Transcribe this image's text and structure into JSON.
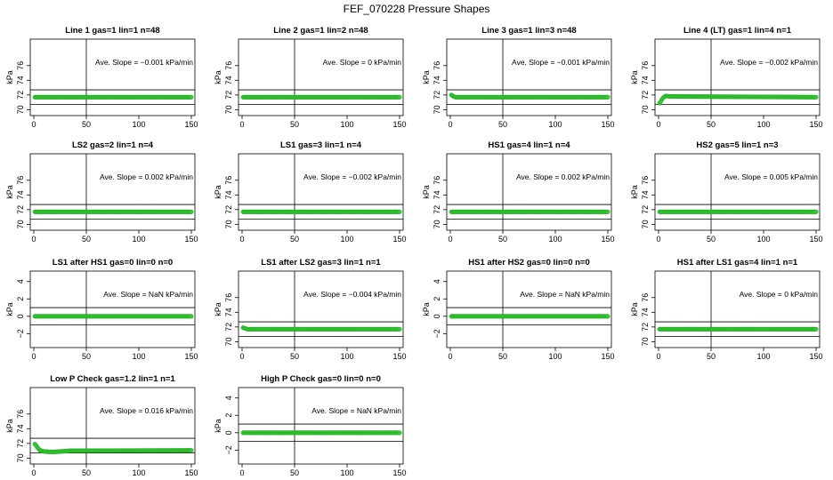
{
  "figure": {
    "title": "FEF_070228  Pressure Shapes",
    "line_color": "#000000",
    "point_color": "#33cc33",
    "point_edge": "#22a822"
  },
  "chart_data": [
    {
      "type": "scatter",
      "title": "Line 1 gas=1 lin=1 n=48",
      "ylabel": "kPa",
      "annotation": "Ave. Slope = −0.001  kPa/min",
      "xlim": [
        0,
        150
      ],
      "ylim": [
        69.2,
        79.6
      ],
      "xticks": [
        0,
        50,
        100,
        150
      ],
      "yticks": [
        70,
        72,
        74,
        76
      ],
      "hlines": [
        70.7,
        72.7
      ],
      "vline": 50,
      "x": [
        1,
        150
      ],
      "y": [
        71.7,
        71.7
      ],
      "shape": "flat"
    },
    {
      "type": "scatter",
      "title": "Line 2 gas=1 lin=2 n=48",
      "ylabel": "kPa",
      "annotation": "Ave. Slope =  0  kPa/min",
      "xlim": [
        0,
        150
      ],
      "ylim": [
        69.2,
        79.6
      ],
      "xticks": [
        0,
        50,
        100,
        150
      ],
      "yticks": [
        70,
        72,
        74,
        76
      ],
      "hlines": [
        70.7,
        72.7
      ],
      "vline": 50,
      "x": [
        1,
        150
      ],
      "y": [
        71.7,
        71.7
      ],
      "shape": "flat"
    },
    {
      "type": "scatter",
      "title": "Line 3 gas=1 lin=3 n=48",
      "ylabel": "kPa",
      "annotation": "Ave. Slope = −0.001  kPa/min",
      "xlim": [
        0,
        150
      ],
      "ylim": [
        69.2,
        79.6
      ],
      "xticks": [
        0,
        50,
        100,
        150
      ],
      "yticks": [
        70,
        72,
        74,
        76
      ],
      "hlines": [
        70.7,
        72.7
      ],
      "vline": 50,
      "x": [
        1,
        2,
        3,
        4,
        5,
        6,
        150
      ],
      "y": [
        72.0,
        71.9,
        71.8,
        71.75,
        71.7,
        71.7,
        71.7
      ],
      "shape": "curve"
    },
    {
      "type": "scatter",
      "title": "Line 4 (LT) gas=1 lin=4 n=1",
      "ylabel": "kPa",
      "annotation": "Ave. Slope = −0.002  kPa/min",
      "xlim": [
        0,
        150
      ],
      "ylim": [
        69.2,
        79.6
      ],
      "xticks": [
        0,
        50,
        100,
        150
      ],
      "yticks": [
        70,
        72,
        74,
        76
      ],
      "hlines": [
        70.7,
        72.7
      ],
      "vline": 50,
      "x": [
        1,
        2,
        3,
        4,
        5,
        6,
        7,
        8,
        10,
        150
      ],
      "y": [
        70.9,
        71.1,
        71.35,
        71.55,
        71.7,
        71.8,
        71.85,
        71.85,
        71.8,
        71.7
      ],
      "shape": "curve"
    },
    {
      "type": "scatter",
      "title": "LS2 gas=2 lin=1 n=4",
      "ylabel": "kPa",
      "annotation": "Ave. Slope =  0.002  kPa/min",
      "xlim": [
        0,
        150
      ],
      "ylim": [
        69.2,
        79.6
      ],
      "xticks": [
        0,
        50,
        100,
        150
      ],
      "yticks": [
        70,
        72,
        74,
        76
      ],
      "hlines": [
        70.7,
        72.7
      ],
      "vline": 50,
      "x": [
        1,
        150
      ],
      "y": [
        71.7,
        71.7
      ],
      "shape": "flat"
    },
    {
      "type": "scatter",
      "title": "LS1 gas=3 lin=1 n=4",
      "ylabel": "kPa",
      "annotation": "Ave. Slope = −0.002  kPa/min",
      "xlim": [
        0,
        150
      ],
      "ylim": [
        69.2,
        79.6
      ],
      "xticks": [
        0,
        50,
        100,
        150
      ],
      "yticks": [
        70,
        72,
        74,
        76
      ],
      "hlines": [
        70.7,
        72.7
      ],
      "vline": 50,
      "x": [
        1,
        150
      ],
      "y": [
        71.7,
        71.7
      ],
      "shape": "flat"
    },
    {
      "type": "scatter",
      "title": "HS1 gas=4 lin=1 n=4",
      "ylabel": "kPa",
      "annotation": "Ave. Slope =  0.002  kPa/min",
      "xlim": [
        0,
        150
      ],
      "ylim": [
        69.2,
        79.6
      ],
      "xticks": [
        0,
        50,
        100,
        150
      ],
      "yticks": [
        70,
        72,
        74,
        76
      ],
      "hlines": [
        70.7,
        72.7
      ],
      "vline": 50,
      "x": [
        1,
        150
      ],
      "y": [
        71.7,
        71.7
      ],
      "shape": "flat"
    },
    {
      "type": "scatter",
      "title": "HS2 gas=5 lin=1 n=3",
      "ylabel": "kPa",
      "annotation": "Ave. Slope =  0.005  kPa/min",
      "xlim": [
        0,
        150
      ],
      "ylim": [
        69.2,
        79.6
      ],
      "xticks": [
        0,
        50,
        100,
        150
      ],
      "yticks": [
        70,
        72,
        74,
        76
      ],
      "hlines": [
        70.7,
        72.7
      ],
      "vline": 50,
      "x": [
        1,
        150
      ],
      "y": [
        71.7,
        71.7
      ],
      "shape": "flat"
    },
    {
      "type": "scatter",
      "title": "LS1 after HS1 gas=0 lin=0 n=0",
      "ylabel": "kPa",
      "annotation": "Ave. Slope =  NaN  kPa/min",
      "xlim": [
        0,
        150
      ],
      "ylim": [
        -3.6,
        5.2
      ],
      "xticks": [
        0,
        50,
        100,
        150
      ],
      "yticks": [
        -2,
        0,
        2,
        4
      ],
      "hlines": [
        -1,
        1
      ],
      "vline": 50,
      "x": [
        1,
        150
      ],
      "y": [
        0,
        0
      ],
      "shape": "flat"
    },
    {
      "type": "scatter",
      "title": "LS1 after LS2 gas=3 lin=1 n=1",
      "ylabel": "kPa",
      "annotation": "Ave. Slope = −0.004  kPa/min",
      "xlim": [
        0,
        150
      ],
      "ylim": [
        69.2,
        79.6
      ],
      "xticks": [
        0,
        50,
        100,
        150
      ],
      "yticks": [
        70,
        72,
        74,
        76
      ],
      "hlines": [
        70.7,
        72.7
      ],
      "vline": 50,
      "x": [
        1,
        2,
        3,
        4,
        5,
        150
      ],
      "y": [
        71.9,
        71.85,
        71.8,
        71.75,
        71.7,
        71.7
      ],
      "shape": "curve"
    },
    {
      "type": "scatter",
      "title": "HS1 after HS2 gas=0 lin=0 n=0",
      "ylabel": "kPa",
      "annotation": "Ave. Slope =  NaN  kPa/min",
      "xlim": [
        0,
        150
      ],
      "ylim": [
        -3.6,
        5.2
      ],
      "xticks": [
        0,
        50,
        100,
        150
      ],
      "yticks": [
        -2,
        0,
        2,
        4
      ],
      "hlines": [
        -1,
        1
      ],
      "vline": 50,
      "x": [
        1,
        150
      ],
      "y": [
        0,
        0
      ],
      "shape": "flat"
    },
    {
      "type": "scatter",
      "title": "HS1 after LS1 gas=4 lin=1 n=1",
      "ylabel": "kPa",
      "annotation": "Ave. Slope =  0  kPa/min",
      "xlim": [
        0,
        150
      ],
      "ylim": [
        69.2,
        79.6
      ],
      "xticks": [
        0,
        50,
        100,
        150
      ],
      "yticks": [
        70,
        72,
        74,
        76
      ],
      "hlines": [
        70.7,
        72.7
      ],
      "vline": 50,
      "x": [
        1,
        150
      ],
      "y": [
        71.7,
        71.7
      ],
      "shape": "flat"
    },
    {
      "type": "scatter",
      "title": "Low P Check gas=1.2 lin=1 n=1",
      "ylabel": "kPa",
      "annotation": "Ave. Slope =  0.016  kPa/min",
      "xlim": [
        0,
        150
      ],
      "ylim": [
        69.2,
        79.6
      ],
      "xticks": [
        0,
        50,
        100,
        150
      ],
      "yticks": [
        70,
        72,
        74,
        76
      ],
      "hlines": [
        70.7,
        72.7
      ],
      "vline": 50,
      "x": [
        1,
        2,
        3,
        4,
        5,
        6,
        8,
        10,
        15,
        20,
        25,
        30,
        35,
        40,
        150
      ],
      "y": [
        71.9,
        71.75,
        71.55,
        71.35,
        71.2,
        71.05,
        70.95,
        70.9,
        70.85,
        70.85,
        70.9,
        70.95,
        71.0,
        71.0,
        71.05
      ],
      "shape": "curve"
    },
    {
      "type": "scatter",
      "title": "High P Check gas=0 lin=0 n=0",
      "ylabel": "kPa",
      "annotation": "Ave. Slope =  NaN  kPa/min",
      "xlim": [
        0,
        150
      ],
      "ylim": [
        -3.6,
        5.2
      ],
      "xticks": [
        0,
        50,
        100,
        150
      ],
      "yticks": [
        -2,
        0,
        2,
        4
      ],
      "hlines": [
        -1,
        1
      ],
      "vline": 50,
      "x": [
        1,
        150
      ],
      "y": [
        0,
        0
      ],
      "shape": "flat"
    }
  ]
}
